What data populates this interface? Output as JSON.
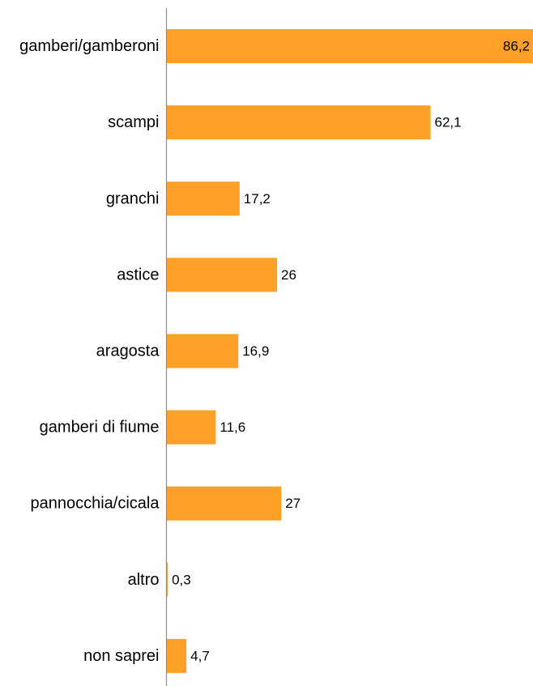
{
  "chart_data": {
    "type": "bar",
    "orientation": "horizontal",
    "categories": [
      "gamberi/gamberoni",
      "scampi",
      "granchi",
      "astice",
      "aragosta",
      "gamberi di fiume",
      "pannocchia/cicala",
      "altro",
      "non saprei"
    ],
    "values": [
      86.2,
      62.1,
      17.2,
      26,
      16.9,
      11.6,
      27,
      0.3,
      4.7
    ],
    "value_labels": [
      "86,2",
      "62,1",
      "17,2",
      "26",
      "16,9",
      "11,6",
      "27",
      "0,3",
      "4,7"
    ],
    "title": "",
    "xlabel": "",
    "ylabel": "",
    "xlim": [
      0,
      86.2
    ],
    "grid": false,
    "legend": "none",
    "bar_color": "#FFA126",
    "axis_color": "#8C8C8C"
  }
}
